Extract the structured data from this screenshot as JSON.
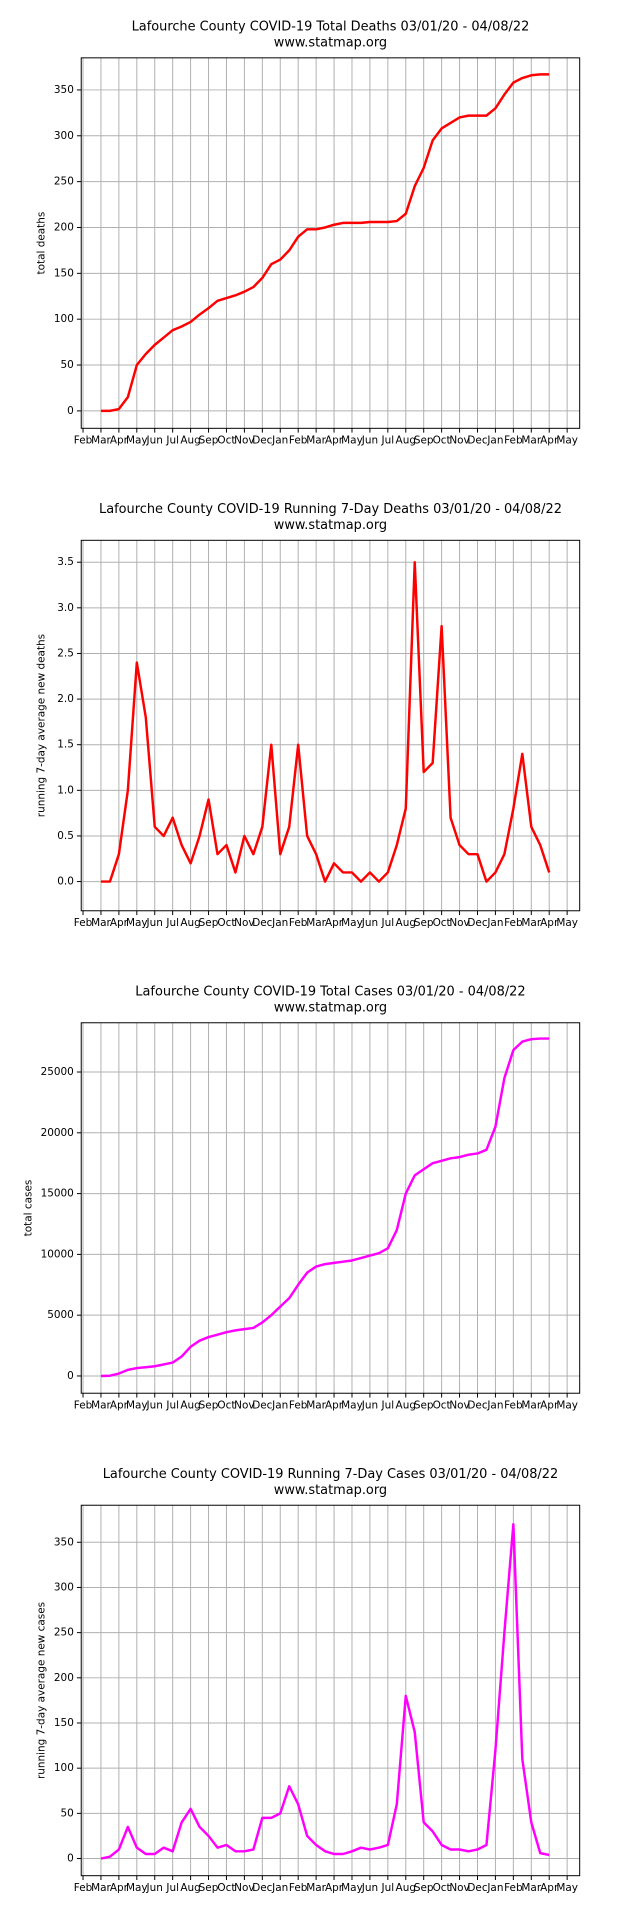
{
  "chart_data": [
    {
      "type": "line",
      "title": "Lafourche County COVID-19 Total Deaths 03/01/20 - 04/08/22",
      "subtitle": "www.statmap.org",
      "ylabel": "total deaths",
      "color": "#ff0000",
      "grid": true,
      "xlim": [
        -0.1,
        27.7
      ],
      "ylim": [
        -19,
        385
      ],
      "yticks": [
        0,
        50,
        100,
        150,
        200,
        250,
        300,
        350
      ],
      "xticks": [
        {
          "value": 0,
          "label": "Feb"
        },
        {
          "value": 1,
          "label": "Mar"
        },
        {
          "value": 2,
          "label": "Apr"
        },
        {
          "value": 3,
          "label": "May"
        },
        {
          "value": 4,
          "label": "Jun"
        },
        {
          "value": 5,
          "label": "Jul"
        },
        {
          "value": 6,
          "label": "Aug"
        },
        {
          "value": 7,
          "label": "Sep"
        },
        {
          "value": 8,
          "label": "Oct"
        },
        {
          "value": 9,
          "label": "Nov"
        },
        {
          "value": 10,
          "label": "Dec"
        },
        {
          "value": 11,
          "label": "Jan"
        },
        {
          "value": 12,
          "label": "Feb"
        },
        {
          "value": 13,
          "label": "Mar"
        },
        {
          "value": 14,
          "label": "Apr"
        },
        {
          "value": 15,
          "label": "May"
        },
        {
          "value": 16,
          "label": "Jun"
        },
        {
          "value": 17,
          "label": "Jul"
        },
        {
          "value": 18,
          "label": "Aug"
        },
        {
          "value": 19,
          "label": "Sep"
        },
        {
          "value": 20,
          "label": "Oct"
        },
        {
          "value": 21,
          "label": "Nov"
        },
        {
          "value": 22,
          "label": "Dec"
        },
        {
          "value": 23,
          "label": "Jan"
        },
        {
          "value": 24,
          "label": "Feb"
        },
        {
          "value": 25,
          "label": "Mar"
        },
        {
          "value": 26,
          "label": "Apr"
        },
        {
          "value": 27,
          "label": "May"
        }
      ],
      "x": [
        1,
        1.5,
        2,
        2.5,
        3,
        3.5,
        4,
        4.5,
        5,
        5.5,
        6,
        6.5,
        7,
        7.5,
        8,
        8.5,
        9,
        9.5,
        10,
        10.5,
        11,
        11.5,
        12,
        12.5,
        13,
        13.5,
        14,
        14.5,
        15,
        15.5,
        16,
        16.5,
        17,
        17.5,
        18,
        18.5,
        19,
        19.5,
        20,
        20.5,
        21,
        21.5,
        22,
        22.5,
        23,
        23.5,
        24,
        24.5,
        25,
        25.5,
        26
      ],
      "values": [
        0,
        0,
        2,
        15,
        50,
        62,
        72,
        80,
        88,
        92,
        97,
        105,
        112,
        120,
        123,
        126,
        130,
        135,
        145,
        160,
        165,
        175,
        190,
        198,
        198,
        200,
        203,
        205,
        205,
        205,
        206,
        206,
        206,
        207,
        215,
        245,
        265,
        295,
        308,
        314,
        320,
        322,
        322,
        322,
        330,
        345,
        358,
        363,
        366,
        367,
        367
      ]
    },
    {
      "type": "line",
      "title": "Lafourche County COVID-19 Running 7-Day Deaths 03/01/20 - 04/08/22",
      "subtitle": "www.statmap.org",
      "ylabel": "running 7-day average new deaths",
      "color": "#ff0000",
      "grid": true,
      "xlim": [
        -0.1,
        27.7
      ],
      "ylim": [
        -0.32,
        3.74
      ],
      "yticks": [
        {
          "value": 0,
          "label": "0.0"
        },
        {
          "value": 0.5,
          "label": "0.5"
        },
        {
          "value": 1,
          "label": "1.0"
        },
        {
          "value": 1.5,
          "label": "1.5"
        },
        {
          "value": 2,
          "label": "2.0"
        },
        {
          "value": 2.5,
          "label": "2.5"
        },
        {
          "value": 3,
          "label": "3.0"
        },
        {
          "value": 3.5,
          "label": "3.5"
        }
      ],
      "xticks": [
        {
          "value": 0,
          "label": "Feb"
        },
        {
          "value": 1,
          "label": "Mar"
        },
        {
          "value": 2,
          "label": "Apr"
        },
        {
          "value": 3,
          "label": "May"
        },
        {
          "value": 4,
          "label": "Jun"
        },
        {
          "value": 5,
          "label": "Jul"
        },
        {
          "value": 6,
          "label": "Aug"
        },
        {
          "value": 7,
          "label": "Sep"
        },
        {
          "value": 8,
          "label": "Oct"
        },
        {
          "value": 9,
          "label": "Nov"
        },
        {
          "value": 10,
          "label": "Dec"
        },
        {
          "value": 11,
          "label": "Jan"
        },
        {
          "value": 12,
          "label": "Feb"
        },
        {
          "value": 13,
          "label": "Mar"
        },
        {
          "value": 14,
          "label": "Apr"
        },
        {
          "value": 15,
          "label": "May"
        },
        {
          "value": 16,
          "label": "Jun"
        },
        {
          "value": 17,
          "label": "Jul"
        },
        {
          "value": 18,
          "label": "Aug"
        },
        {
          "value": 19,
          "label": "Sep"
        },
        {
          "value": 20,
          "label": "Oct"
        },
        {
          "value": 21,
          "label": "Nov"
        },
        {
          "value": 22,
          "label": "Dec"
        },
        {
          "value": 23,
          "label": "Jan"
        },
        {
          "value": 24,
          "label": "Feb"
        },
        {
          "value": 25,
          "label": "Mar"
        },
        {
          "value": 26,
          "label": "Apr"
        },
        {
          "value": 27,
          "label": "May"
        }
      ],
      "x": [
        1,
        1.5,
        2,
        2.5,
        3,
        3.5,
        4,
        4.5,
        5,
        5.5,
        6,
        6.5,
        7,
        7.5,
        8,
        8.5,
        9,
        9.5,
        10,
        10.5,
        11,
        11.5,
        12,
        12.5,
        13,
        13.5,
        14,
        14.5,
        15,
        15.5,
        16,
        16.5,
        17,
        17.5,
        18,
        18.5,
        19,
        19.5,
        20,
        20.5,
        21,
        21.5,
        22,
        22.5,
        23,
        23.5,
        24,
        24.5,
        25,
        25.5,
        26
      ],
      "values": [
        0,
        0,
        0.3,
        1.0,
        2.4,
        1.8,
        0.6,
        0.5,
        0.7,
        0.4,
        0.2,
        0.5,
        0.9,
        0.3,
        0.4,
        0.1,
        0.5,
        0.3,
        0.6,
        1.5,
        0.3,
        0.6,
        1.5,
        0.5,
        0.3,
        0,
        0.2,
        0.1,
        0.1,
        0,
        0.1,
        0,
        0.1,
        0.4,
        0.8,
        3.5,
        1.2,
        1.3,
        2.8,
        0.7,
        0.4,
        0.3,
        0.3,
        0,
        0.1,
        0.3,
        0.8,
        1.4,
        0.6,
        0.4,
        0.1
      ]
    },
    {
      "type": "line",
      "title": "Lafourche County COVID-19 Total Cases 03/01/20 - 04/08/22",
      "subtitle": "www.statmap.org",
      "ylabel": "total cases",
      "color": "#ff00ff",
      "grid": true,
      "xlim": [
        -0.1,
        27.7
      ],
      "ylim": [
        -1420,
        29050
      ],
      "yticks": [
        0,
        5000,
        10000,
        15000,
        20000,
        25000
      ],
      "xticks": [
        {
          "value": 0,
          "label": "Feb"
        },
        {
          "value": 1,
          "label": "Mar"
        },
        {
          "value": 2,
          "label": "Apr"
        },
        {
          "value": 3,
          "label": "May"
        },
        {
          "value": 4,
          "label": "Jun"
        },
        {
          "value": 5,
          "label": "Jul"
        },
        {
          "value": 6,
          "label": "Aug"
        },
        {
          "value": 7,
          "label": "Sep"
        },
        {
          "value": 8,
          "label": "Oct"
        },
        {
          "value": 9,
          "label": "Nov"
        },
        {
          "value": 10,
          "label": "Dec"
        },
        {
          "value": 11,
          "label": "Jan"
        },
        {
          "value": 12,
          "label": "Feb"
        },
        {
          "value": 13,
          "label": "Mar"
        },
        {
          "value": 14,
          "label": "Apr"
        },
        {
          "value": 15,
          "label": "May"
        },
        {
          "value": 16,
          "label": "Jun"
        },
        {
          "value": 17,
          "label": "Jul"
        },
        {
          "value": 18,
          "label": "Aug"
        },
        {
          "value": 19,
          "label": "Sep"
        },
        {
          "value": 20,
          "label": "Oct"
        },
        {
          "value": 21,
          "label": "Nov"
        },
        {
          "value": 22,
          "label": "Dec"
        },
        {
          "value": 23,
          "label": "Jan"
        },
        {
          "value": 24,
          "label": "Feb"
        },
        {
          "value": 25,
          "label": "Mar"
        },
        {
          "value": 26,
          "label": "Apr"
        },
        {
          "value": 27,
          "label": "May"
        }
      ],
      "x": [
        1,
        1.5,
        2,
        2.5,
        3,
        3.5,
        4,
        4.5,
        5,
        5.5,
        6,
        6.5,
        7,
        7.5,
        8,
        8.5,
        9,
        9.5,
        10,
        10.5,
        11,
        11.5,
        12,
        12.5,
        13,
        13.5,
        14,
        14.5,
        15,
        15.5,
        16,
        16.5,
        17,
        17.5,
        18,
        18.5,
        19,
        19.5,
        20,
        20.5,
        21,
        21.5,
        22,
        22.5,
        23,
        23.5,
        24,
        24.5,
        25,
        25.5,
        26
      ],
      "values": [
        0,
        20,
        200,
        500,
        650,
        720,
        800,
        950,
        1100,
        1600,
        2400,
        2900,
        3200,
        3400,
        3600,
        3750,
        3850,
        3950,
        4400,
        5000,
        5700,
        6400,
        7500,
        8500,
        9000,
        9200,
        9300,
        9400,
        9500,
        9700,
        9900,
        10100,
        10500,
        12000,
        15000,
        16500,
        17000,
        17500,
        17700,
        17900,
        18000,
        18200,
        18300,
        18600,
        20500,
        24500,
        26800,
        27500,
        27700,
        27750,
        27750
      ]
    },
    {
      "type": "line",
      "title": "Lafourche County COVID-19 Running 7-Day Cases 03/01/20 - 04/08/22",
      "subtitle": "www.statmap.org",
      "ylabel": "running 7-day average new cases",
      "color": "#ff00ff",
      "grid": true,
      "xlim": [
        -0.1,
        27.7
      ],
      "ylim": [
        -19,
        391
      ],
      "yticks": [
        0,
        50,
        100,
        150,
        200,
        250,
        300,
        350
      ],
      "xticks": [
        {
          "value": 0,
          "label": "Feb"
        },
        {
          "value": 1,
          "label": "Mar"
        },
        {
          "value": 2,
          "label": "Apr"
        },
        {
          "value": 3,
          "label": "May"
        },
        {
          "value": 4,
          "label": "Jun"
        },
        {
          "value": 5,
          "label": "Jul"
        },
        {
          "value": 6,
          "label": "Aug"
        },
        {
          "value": 7,
          "label": "Sep"
        },
        {
          "value": 8,
          "label": "Oct"
        },
        {
          "value": 9,
          "label": "Nov"
        },
        {
          "value": 10,
          "label": "Dec"
        },
        {
          "value": 11,
          "label": "Jan"
        },
        {
          "value": 12,
          "label": "Feb"
        },
        {
          "value": 13,
          "label": "Mar"
        },
        {
          "value": 14,
          "label": "Apr"
        },
        {
          "value": 15,
          "label": "May"
        },
        {
          "value": 16,
          "label": "Jun"
        },
        {
          "value": 17,
          "label": "Jul"
        },
        {
          "value": 18,
          "label": "Aug"
        },
        {
          "value": 19,
          "label": "Sep"
        },
        {
          "value": 20,
          "label": "Oct"
        },
        {
          "value": 21,
          "label": "Nov"
        },
        {
          "value": 22,
          "label": "Dec"
        },
        {
          "value": 23,
          "label": "Jan"
        },
        {
          "value": 24,
          "label": "Feb"
        },
        {
          "value": 25,
          "label": "Mar"
        },
        {
          "value": 26,
          "label": "Apr"
        },
        {
          "value": 27,
          "label": "May"
        }
      ],
      "x": [
        1,
        1.5,
        2,
        2.5,
        3,
        3.5,
        4,
        4.5,
        5,
        5.5,
        6,
        6.5,
        7,
        7.5,
        8,
        8.5,
        9,
        9.5,
        10,
        10.5,
        11,
        11.5,
        12,
        12.5,
        13,
        13.5,
        14,
        14.5,
        15,
        15.5,
        16,
        16.5,
        17,
        17.5,
        18,
        18.5,
        19,
        19.5,
        20,
        20.5,
        21,
        21.5,
        22,
        22.5,
        23,
        23.5,
        24,
        24.5,
        25,
        25.5,
        26
      ],
      "values": [
        0,
        2,
        10,
        35,
        12,
        5,
        5,
        12,
        8,
        40,
        55,
        35,
        25,
        12,
        15,
        8,
        8,
        10,
        45,
        45,
        50,
        80,
        60,
        25,
        15,
        8,
        5,
        5,
        8,
        12,
        10,
        12,
        15,
        60,
        180,
        140,
        40,
        30,
        15,
        10,
        10,
        8,
        10,
        15,
        120,
        250,
        370,
        110,
        40,
        6,
        4
      ]
    }
  ]
}
